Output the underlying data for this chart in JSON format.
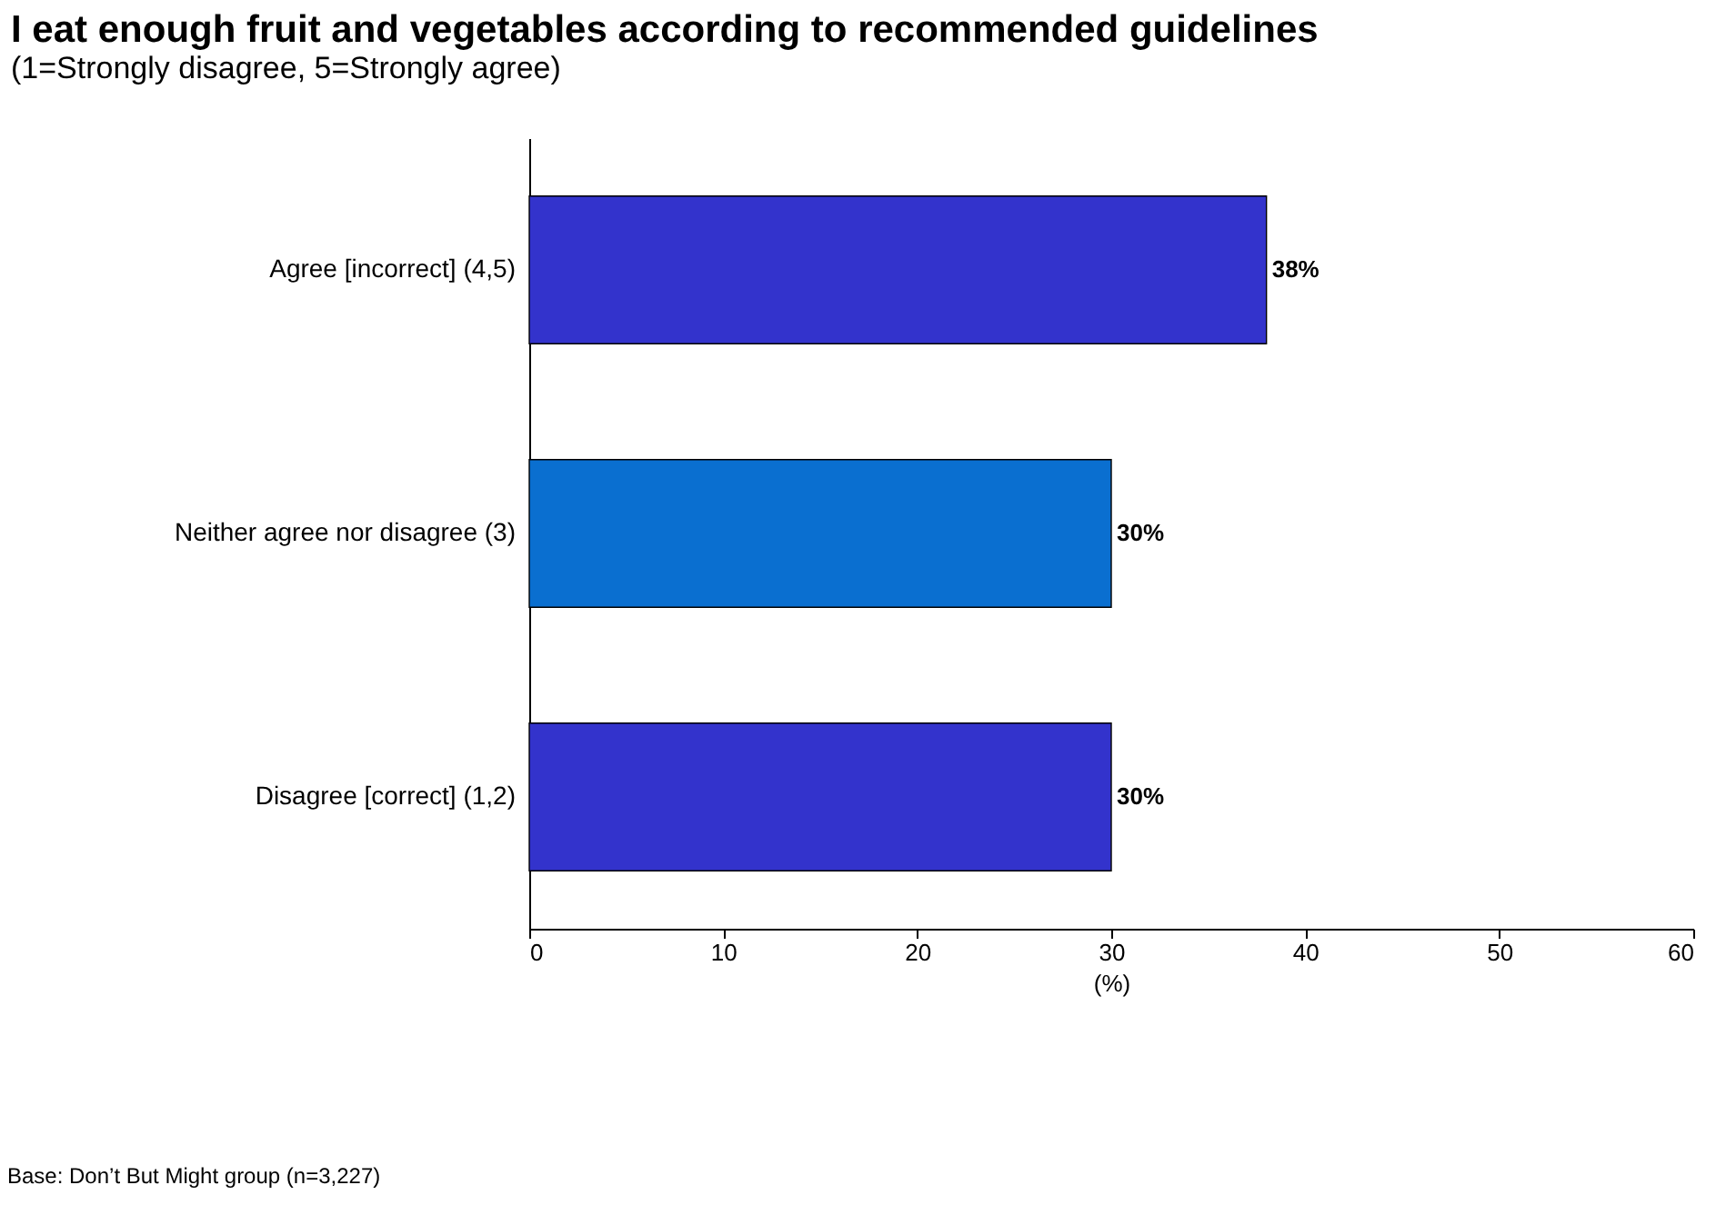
{
  "chart_data": {
    "type": "bar",
    "orientation": "horizontal",
    "title": "I eat enough fruit and vegetables according to recommended guidelines",
    "subtitle": "(1=Strongly disagree, 5=Strongly agree)",
    "categories": [
      "Agree [incorrect] (4,5)",
      "Neither agree nor disagree (3)",
      "Disagree [correct] (1,2)"
    ],
    "values": [
      38,
      30,
      30
    ],
    "colors": [
      "#3333cc",
      "#0a6fd0",
      "#3333cc"
    ],
    "value_labels": [
      "38%",
      "30%",
      "30%"
    ],
    "xlabel": "(%)",
    "xlim": [
      0,
      60
    ],
    "xticks": [
      0,
      10,
      20,
      30,
      40,
      50,
      60
    ],
    "grid": false,
    "annotations": [
      "Base: Don’t But Might group (n=3,227)"
    ]
  }
}
